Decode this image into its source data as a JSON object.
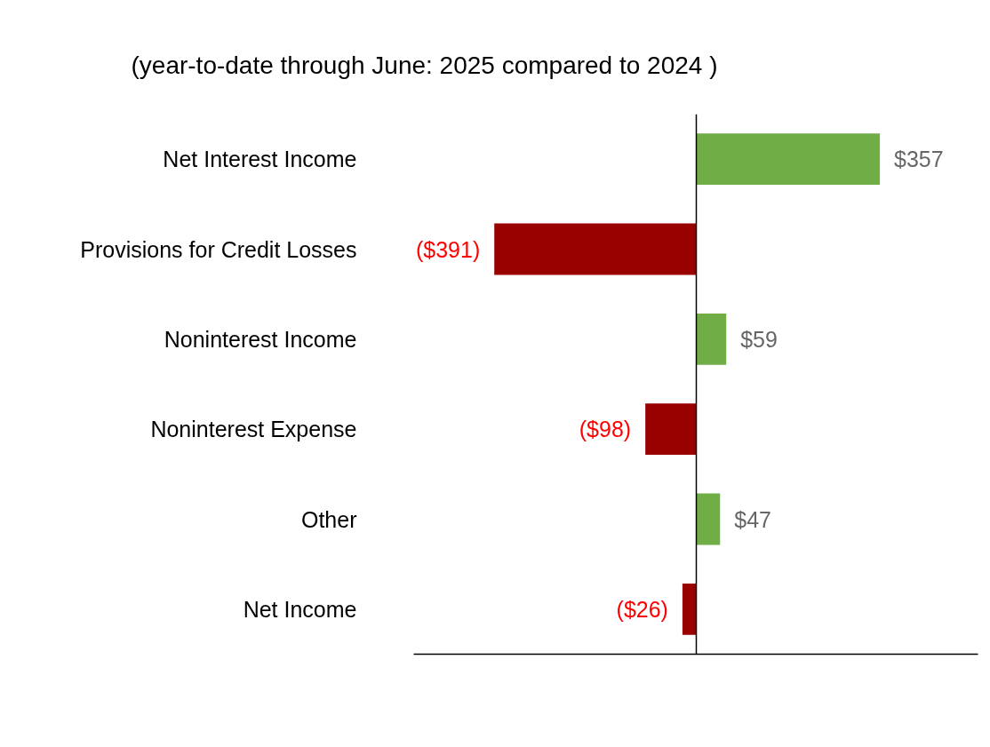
{
  "chart_data": {
    "type": "bar",
    "orientation": "horizontal",
    "subtitle": "(year-to-date through June: 2025 compared to 2024 )",
    "categories": [
      "Net Interest Income",
      "Provisions for Credit Losses",
      "Noninterest Income",
      "Noninterest Expense",
      "Other",
      "Net Income"
    ],
    "values": [
      357,
      -391,
      59,
      -98,
      47,
      -26
    ],
    "colors": [
      "#70ad47",
      "#990000",
      "#70ad47",
      "#990000",
      "#70ad47",
      "#990000"
    ],
    "value_labels": [
      "$357",
      "($391)",
      "$59",
      "($98)",
      "$47",
      "($26)"
    ],
    "grid": false
  }
}
